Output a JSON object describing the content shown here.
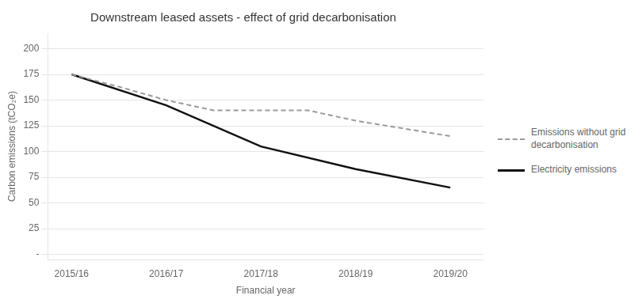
{
  "chart_data": {
    "type": "line",
    "title": "Downstream leased assets - effect of grid decarbonisation",
    "xlabel": "Financial year",
    "ylabel": "Carbon emissions (tCO₂e)",
    "xlim": [
      -0.25,
      4.35
    ],
    "xticks": [
      {
        "value": 0,
        "label": "2015/16"
      },
      {
        "value": 1,
        "label": "2016/17"
      },
      {
        "value": 2,
        "label": "2017/18"
      },
      {
        "value": 3,
        "label": "2018/19"
      },
      {
        "value": 4,
        "label": "2019/20"
      }
    ],
    "ylim": [
      -5,
      215
    ],
    "yticks": [
      {
        "value": 0,
        "label": "-"
      },
      25,
      50,
      75,
      100,
      125,
      150,
      175,
      200
    ],
    "grid": "y",
    "legend": "right",
    "series": [
      {
        "name": "Emissions without grid\ndecarbonisation",
        "color": "#999999",
        "line_style": "dashed",
        "x": [
          0,
          0.5,
          1.0,
          1.5,
          2.0,
          2.5,
          3.0,
          4.0
        ],
        "values": [
          175,
          163,
          150,
          140,
          140,
          140,
          130,
          115
        ]
      },
      {
        "name": "Electricity emissions",
        "color": "#111111",
        "line_style": "solid",
        "x": [
          0,
          1,
          2,
          3,
          4
        ],
        "values": [
          175,
          145,
          105,
          83,
          65
        ]
      }
    ]
  }
}
